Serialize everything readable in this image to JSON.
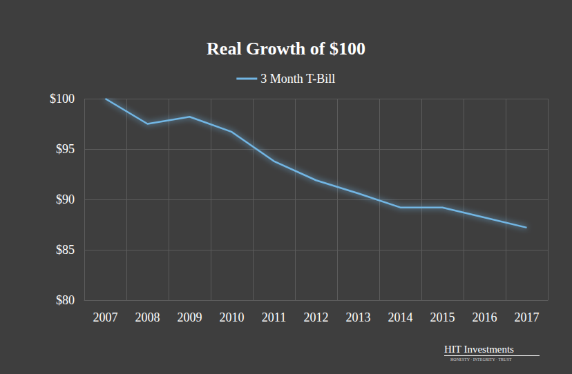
{
  "chart_data": {
    "type": "line",
    "title": "Real Growth of $100",
    "categories": [
      "2007",
      "2008",
      "2009",
      "2010",
      "2011",
      "2012",
      "2013",
      "2014",
      "2015",
      "2016",
      "2017"
    ],
    "series": [
      {
        "name": "3 Month T-Bill",
        "color": "#72b6e4",
        "values": [
          100,
          97.5,
          98.2,
          96.7,
          93.8,
          91.9,
          90.6,
          89.2,
          89.2,
          88.2,
          87.2
        ]
      }
    ],
    "ylim": [
      80,
      100
    ],
    "yticks": [
      {
        "value": 80,
        "label": "$80"
      },
      {
        "value": 85,
        "label": "$85"
      },
      {
        "value": 90,
        "label": "$90"
      },
      {
        "value": 95,
        "label": "$95"
      },
      {
        "value": 100,
        "label": "$100"
      }
    ],
    "grid": true,
    "legend": "top",
    "annotations": [
      "HIT Investments",
      "HONESTY · INTEGRITY · TRUST"
    ]
  }
}
